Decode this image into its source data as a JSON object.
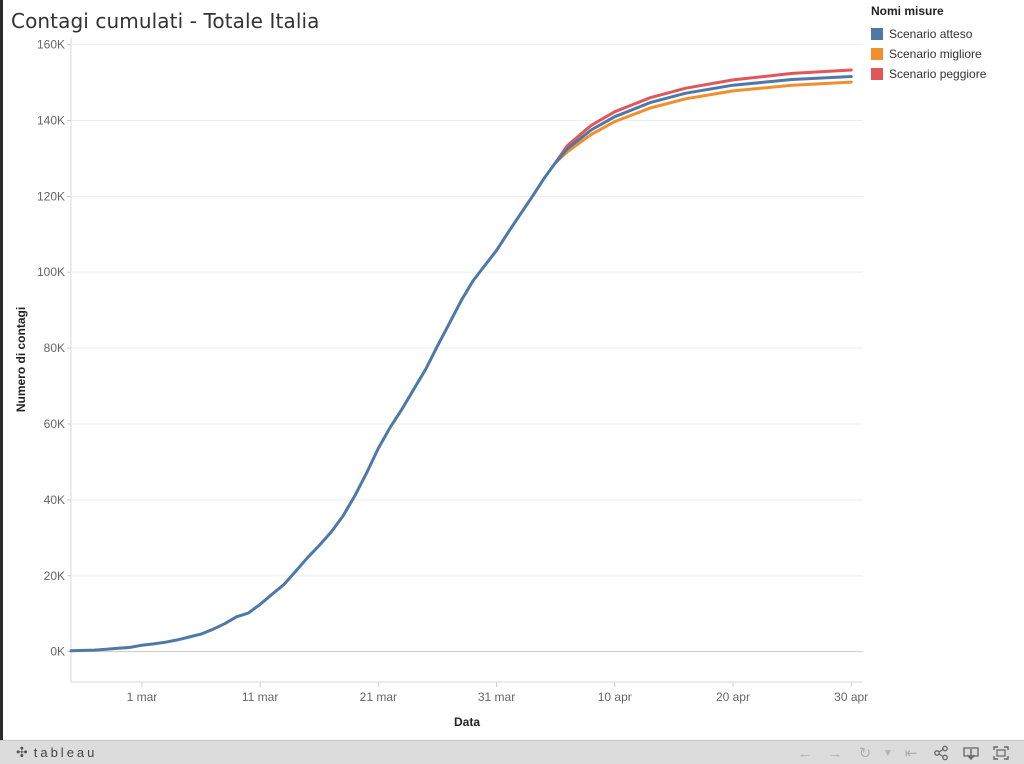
{
  "title": "Contagi cumulati - Totale Italia",
  "legend": {
    "title": "Nomi misure",
    "items": [
      {
        "label": "Scenario atteso",
        "color": "#4e79a7"
      },
      {
        "label": "Scenario migliore",
        "color": "#f28e2b"
      },
      {
        "label": "Scenario peggiore",
        "color": "#e15759"
      }
    ]
  },
  "footer": {
    "brand": "tableau",
    "brand_icon": "tableau-logo-icon",
    "toolbar_icons": [
      "undo-arrow-icon",
      "redo-arrow-icon",
      "revert-icon",
      "dropdown-icon",
      "reset-icon",
      "share-icon",
      "download-icon",
      "fullscreen-icon"
    ]
  },
  "chart_data": {
    "type": "line",
    "title": "Contagi cumulati - Totale Italia",
    "xlabel": "Data",
    "ylabel": "Numero di contagi",
    "x_ticks": [
      "1 mar",
      "11 mar",
      "21 mar",
      "31 mar",
      "10 apr",
      "20 apr",
      "30 apr"
    ],
    "y_ticks": [
      "0K",
      "20K",
      "40K",
      "60K",
      "80K",
      "100K",
      "120K",
      "140K",
      "160K"
    ],
    "x_range": [
      "2020-02-24",
      "2020-05-01"
    ],
    "y_range": [
      -8000,
      162000
    ],
    "grid": true,
    "legend_position": "top-right",
    "series": [
      {
        "name": "Scenario atteso",
        "color": "#4e79a7",
        "points": [
          [
            "2020-02-24",
            229
          ],
          [
            "2020-02-25",
            322
          ],
          [
            "2020-02-26",
            400
          ],
          [
            "2020-02-27",
            650
          ],
          [
            "2020-02-28",
            888
          ],
          [
            "2020-02-29",
            1128
          ],
          [
            "2020-03-01",
            1694
          ],
          [
            "2020-03-02",
            2036
          ],
          [
            "2020-03-03",
            2502
          ],
          [
            "2020-03-04",
            3089
          ],
          [
            "2020-03-05",
            3858
          ],
          [
            "2020-03-06",
            4636
          ],
          [
            "2020-03-07",
            5883
          ],
          [
            "2020-03-08",
            7375
          ],
          [
            "2020-03-09",
            9172
          ],
          [
            "2020-03-10",
            10149
          ],
          [
            "2020-03-11",
            12462
          ],
          [
            "2020-03-12",
            15113
          ],
          [
            "2020-03-13",
            17660
          ],
          [
            "2020-03-14",
            21157
          ],
          [
            "2020-03-15",
            24747
          ],
          [
            "2020-03-16",
            27980
          ],
          [
            "2020-03-17",
            31506
          ],
          [
            "2020-03-18",
            35713
          ],
          [
            "2020-03-19",
            41035
          ],
          [
            "2020-03-20",
            47021
          ],
          [
            "2020-03-21",
            53578
          ],
          [
            "2020-03-22",
            59138
          ],
          [
            "2020-03-23",
            63927
          ],
          [
            "2020-03-24",
            69176
          ],
          [
            "2020-03-25",
            74386
          ],
          [
            "2020-03-26",
            80539
          ],
          [
            "2020-03-27",
            86498
          ],
          [
            "2020-03-28",
            92472
          ],
          [
            "2020-03-29",
            97689
          ],
          [
            "2020-03-30",
            101739
          ],
          [
            "2020-03-31",
            105792
          ],
          [
            "2020-04-01",
            110574
          ],
          [
            "2020-04-02",
            115242
          ],
          [
            "2020-04-03",
            119827
          ],
          [
            "2020-04-04",
            124632
          ],
          [
            "2020-04-05",
            128948
          ],
          [
            "2020-04-06",
            132547
          ],
          [
            "2020-04-08",
            137500
          ],
          [
            "2020-04-10",
            141000
          ],
          [
            "2020-04-13",
            144700
          ],
          [
            "2020-04-16",
            147200
          ],
          [
            "2020-04-20",
            149300
          ],
          [
            "2020-04-25",
            150800
          ],
          [
            "2020-04-30",
            151600
          ]
        ]
      },
      {
        "name": "Scenario migliore",
        "color": "#f28e2b",
        "points": [
          [
            "2020-04-05",
            128948
          ],
          [
            "2020-04-06",
            131800
          ],
          [
            "2020-04-08",
            136300
          ],
          [
            "2020-04-10",
            139700
          ],
          [
            "2020-04-13",
            143300
          ],
          [
            "2020-04-16",
            145700
          ],
          [
            "2020-04-20",
            147800
          ],
          [
            "2020-04-25",
            149300
          ],
          [
            "2020-04-30",
            150100
          ]
        ]
      },
      {
        "name": "Scenario peggiore",
        "color": "#e15759",
        "points": [
          [
            "2020-04-05",
            128948
          ],
          [
            "2020-04-06",
            133400
          ],
          [
            "2020-04-08",
            138700
          ],
          [
            "2020-04-10",
            142300
          ],
          [
            "2020-04-13",
            146000
          ],
          [
            "2020-04-16",
            148500
          ],
          [
            "2020-04-20",
            150700
          ],
          [
            "2020-04-25",
            152400
          ],
          [
            "2020-04-30",
            153300
          ]
        ]
      }
    ]
  }
}
